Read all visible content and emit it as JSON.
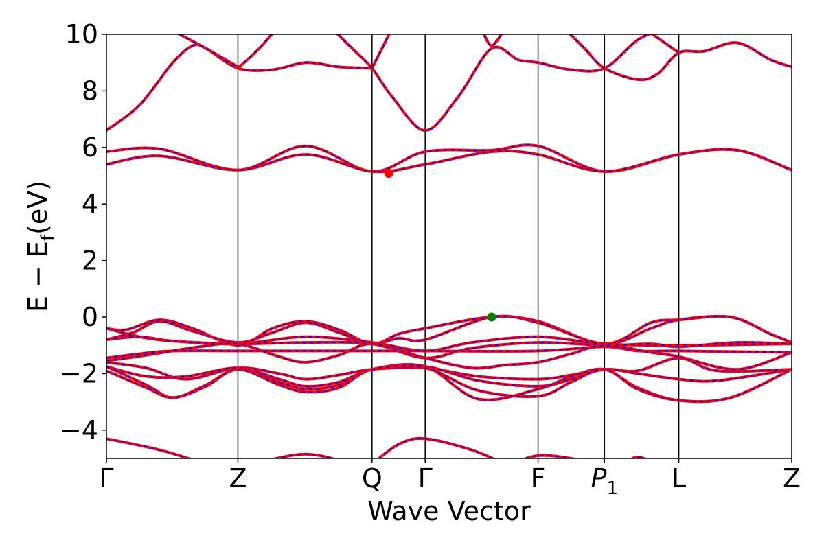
{
  "chart_data": {
    "type": "line",
    "title": "",
    "xlabel": "Wave Vector",
    "ylabel_parts": {
      "main": "E − E",
      "sub": "f",
      "unit": "(eV)"
    },
    "xlim": [
      0,
      10.32
    ],
    "ylim": [
      -5,
      10
    ],
    "yticks": [
      {
        "value": -4,
        "label": "−4"
      },
      {
        "value": -2,
        "label": "−2"
      },
      {
        "value": 0,
        "label": "0"
      },
      {
        "value": 2,
        "label": "2"
      },
      {
        "value": 4,
        "label": "4"
      },
      {
        "value": 6,
        "label": "6"
      },
      {
        "value": 8,
        "label": "8"
      },
      {
        "value": 10,
        "label": "10"
      }
    ],
    "kpoints": [
      {
        "name": "gamma-1",
        "pos": 0.0,
        "label": "Γ",
        "sub": ""
      },
      {
        "name": "z-1",
        "pos": 1.98,
        "label": "Z",
        "sub": ""
      },
      {
        "name": "q",
        "pos": 4.0,
        "label": "Q",
        "sub": ""
      },
      {
        "name": "gamma-2",
        "pos": 4.8,
        "label": "Γ",
        "sub": ""
      },
      {
        "name": "f",
        "pos": 6.5,
        "label": "F",
        "sub": ""
      },
      {
        "name": "p1",
        "pos": 7.5,
        "label": "P",
        "sub": "1"
      },
      {
        "name": "l",
        "pos": 8.62,
        "label": "L",
        "sub": ""
      },
      {
        "name": "z-2",
        "pos": 10.32,
        "label": "Z",
        "sub": ""
      }
    ],
    "grid": false,
    "styles": {
      "band_color": "#ff0000",
      "dash_color": "#0000ff",
      "cbm_color": "#ff0000",
      "vbm_color": "#008000"
    },
    "markers": [
      {
        "name": "conduction-band-minimum-marker",
        "x": 4.25,
        "y": 5.08,
        "color": "#ff0000"
      },
      {
        "name": "valence-band-maximum-marker",
        "x": 5.8,
        "y": 0.0,
        "color": "#008000"
      }
    ],
    "series": [
      {
        "id": "c-upper-1",
        "points": [
          [
            0,
            6.6
          ],
          [
            0.5,
            7.5
          ],
          [
            1.0,
            9.0
          ],
          [
            1.3,
            9.6
          ],
          [
            1.5,
            9.5
          ],
          [
            1.98,
            8.8
          ],
          [
            2.5,
            8.75
          ],
          [
            3.0,
            9.0
          ],
          [
            3.5,
            8.85
          ],
          [
            4.0,
            8.8
          ]
        ]
      },
      {
        "id": "c-upper-2",
        "points": [
          [
            1.98,
            8.8
          ],
          [
            2.3,
            9.5
          ],
          [
            2.6,
            10.3
          ]
        ]
      },
      {
        "id": "c-upper-3",
        "points": [
          [
            1.1,
            10.0
          ],
          [
            1.5,
            9.5
          ],
          [
            1.98,
            8.85
          ]
        ]
      },
      {
        "id": "c-upper-4",
        "points": [
          [
            3.4,
            10.2
          ],
          [
            3.7,
            9.5
          ],
          [
            4.0,
            8.8
          ],
          [
            4.3,
            7.8
          ],
          [
            4.8,
            6.6
          ],
          [
            5.3,
            7.8
          ],
          [
            5.8,
            9.5
          ],
          [
            6.2,
            9.1
          ],
          [
            6.5,
            9.0
          ],
          [
            7.0,
            8.75
          ],
          [
            7.5,
            8.8
          ],
          [
            8.0,
            9.8
          ],
          [
            8.4,
            10.2
          ]
        ]
      },
      {
        "id": "c-upper-5",
        "points": [
          [
            4.0,
            8.8
          ],
          [
            4.3,
            10.2
          ]
        ]
      },
      {
        "id": "c-upper-6",
        "points": [
          [
            5.65,
            10.2
          ],
          [
            5.8,
            9.6
          ],
          [
            6.0,
            10.2
          ]
        ]
      },
      {
        "id": "c-upper-7",
        "points": [
          [
            6.9,
            10.2
          ],
          [
            7.2,
            9.5
          ],
          [
            7.5,
            8.8
          ],
          [
            8.0,
            8.4
          ],
          [
            8.3,
            8.6
          ],
          [
            8.62,
            9.35
          ],
          [
            9.0,
            9.4
          ],
          [
            9.5,
            9.7
          ],
          [
            10.0,
            9.1
          ],
          [
            10.32,
            8.85
          ]
        ]
      },
      {
        "id": "c-upper-8",
        "points": [
          [
            8.1,
            10.2
          ],
          [
            8.62,
            9.35
          ]
        ]
      },
      {
        "id": "c-band-1",
        "points": [
          [
            0,
            5.85
          ],
          [
            0.8,
            5.95
          ],
          [
            1.98,
            5.2
          ],
          [
            3.0,
            6.05
          ],
          [
            4.0,
            5.15
          ],
          [
            4.8,
            5.85
          ],
          [
            5.8,
            5.9
          ],
          [
            6.5,
            6.05
          ],
          [
            7.5,
            5.15
          ],
          [
            8.62,
            5.75
          ],
          [
            9.5,
            5.9
          ],
          [
            10.32,
            5.2
          ]
        ]
      },
      {
        "id": "c-band-2",
        "points": [
          [
            0,
            5.4
          ],
          [
            0.8,
            5.7
          ],
          [
            1.98,
            5.2
          ],
          [
            3.0,
            5.75
          ],
          [
            4.0,
            5.15
          ],
          [
            4.8,
            5.4
          ],
          [
            5.8,
            5.85
          ],
          [
            6.5,
            5.75
          ],
          [
            7.5,
            5.15
          ],
          [
            8.62,
            5.75
          ],
          [
            9.5,
            5.9
          ],
          [
            10.32,
            5.2
          ]
        ]
      },
      {
        "id": "v-1",
        "points": [
          [
            0,
            -0.4
          ],
          [
            0.3,
            -0.45
          ],
          [
            0.8,
            -0.1
          ],
          [
            1.3,
            -0.4
          ],
          [
            1.98,
            -1.0
          ],
          [
            2.5,
            -0.4
          ],
          [
            3.0,
            -0.15
          ],
          [
            3.5,
            -0.45
          ],
          [
            4.0,
            -0.95
          ],
          [
            4.4,
            -0.6
          ],
          [
            4.8,
            -0.4
          ],
          [
            5.8,
            0.0
          ],
          [
            6.5,
            -0.15
          ],
          [
            7.5,
            -0.95
          ],
          [
            8.2,
            -0.2
          ],
          [
            8.62,
            -0.1
          ],
          [
            9.4,
            0.0
          ],
          [
            10.0,
            -0.6
          ],
          [
            10.32,
            -0.9
          ]
        ]
      },
      {
        "id": "v-2",
        "points": [
          [
            0,
            -0.8
          ],
          [
            0.4,
            -0.55
          ],
          [
            0.8,
            -0.15
          ],
          [
            1.3,
            -0.5
          ],
          [
            1.98,
            -0.9
          ],
          [
            2.5,
            -0.55
          ],
          [
            3.0,
            -0.2
          ],
          [
            3.5,
            -0.55
          ],
          [
            4.0,
            -0.95
          ],
          [
            4.4,
            -0.75
          ],
          [
            4.8,
            -0.8
          ],
          [
            5.8,
            0.0
          ],
          [
            6.5,
            -0.2
          ],
          [
            7.5,
            -0.95
          ],
          [
            8.2,
            -0.4
          ],
          [
            8.62,
            -0.1
          ],
          [
            9.4,
            0.0
          ],
          [
            10.0,
            -0.6
          ],
          [
            10.32,
            -0.9
          ]
        ]
      },
      {
        "id": "v-3",
        "points": [
          [
            0,
            -0.4
          ],
          [
            0.5,
            -0.7
          ],
          [
            1.0,
            -0.85
          ],
          [
            1.98,
            -0.95
          ],
          [
            3.0,
            -0.7
          ],
          [
            4.0,
            -0.9
          ],
          [
            4.8,
            -1.2
          ],
          [
            5.5,
            -0.9
          ],
          [
            6.5,
            -0.7
          ],
          [
            7.5,
            -0.95
          ],
          [
            8.62,
            -1.0
          ],
          [
            10.32,
            -0.95
          ]
        ]
      },
      {
        "id": "v-4",
        "points": [
          [
            0,
            -0.8
          ],
          [
            0.5,
            -0.7
          ],
          [
            1.0,
            -0.85
          ],
          [
            1.98,
            -0.95
          ],
          [
            3.0,
            -0.9
          ],
          [
            4.0,
            -0.95
          ],
          [
            4.8,
            -1.45
          ],
          [
            5.5,
            -1.1
          ],
          [
            6.5,
            -0.9
          ],
          [
            7.5,
            -1.0
          ],
          [
            8.2,
            -0.95
          ],
          [
            8.62,
            -1.05
          ],
          [
            9.5,
            -0.9
          ],
          [
            10.32,
            -0.95
          ]
        ]
      },
      {
        "id": "v-5",
        "points": [
          [
            0,
            -1.45
          ],
          [
            0.5,
            -1.3
          ],
          [
            1.0,
            -1.2
          ],
          [
            1.98,
            -1.2
          ],
          [
            3.0,
            -1.2
          ],
          [
            4.0,
            -1.2
          ],
          [
            4.8,
            -1.2
          ],
          [
            6.5,
            -1.2
          ],
          [
            7.5,
            -1.05
          ],
          [
            8.0,
            -1.2
          ],
          [
            8.62,
            -1.2
          ],
          [
            10.32,
            -1.25
          ]
        ]
      },
      {
        "id": "v-6",
        "points": [
          [
            0,
            -1.55
          ],
          [
            0.6,
            -1.35
          ],
          [
            1.4,
            -1.05
          ],
          [
            1.98,
            -0.95
          ],
          [
            2.6,
            -1.4
          ],
          [
            3.0,
            -1.6
          ],
          [
            3.5,
            -1.35
          ],
          [
            4.0,
            -0.95
          ],
          [
            4.8,
            -1.45
          ],
          [
            5.5,
            -1.8
          ],
          [
            6.0,
            -1.7
          ],
          [
            6.5,
            -1.6
          ],
          [
            7.0,
            -1.3
          ],
          [
            7.5,
            -1.0
          ],
          [
            8.2,
            -1.25
          ],
          [
            8.62,
            -1.4
          ],
          [
            9.5,
            -1.85
          ],
          [
            10.32,
            -1.25
          ]
        ]
      },
      {
        "id": "v-7",
        "points": [
          [
            0,
            -1.6
          ],
          [
            0.6,
            -1.8
          ],
          [
            1.2,
            -2.2
          ],
          [
            1.98,
            -1.8
          ],
          [
            2.6,
            -2.0
          ],
          [
            3.0,
            -2.2
          ],
          [
            3.5,
            -2.05
          ],
          [
            4.0,
            -1.85
          ],
          [
            4.8,
            -1.8
          ],
          [
            5.6,
            -2.1
          ],
          [
            6.5,
            -2.2
          ],
          [
            7.0,
            -2.05
          ],
          [
            7.5,
            -1.85
          ],
          [
            8.0,
            -1.9
          ],
          [
            8.62,
            -1.45
          ],
          [
            9.2,
            -1.9
          ],
          [
            10.32,
            -1.85
          ]
        ]
      },
      {
        "id": "v-8",
        "points": [
          [
            0,
            -1.75
          ],
          [
            0.6,
            -2.1
          ],
          [
            1.2,
            -2.1
          ],
          [
            1.98,
            -1.8
          ],
          [
            2.6,
            -2.2
          ],
          [
            3.0,
            -2.45
          ],
          [
            3.5,
            -2.3
          ],
          [
            4.0,
            -1.85
          ],
          [
            4.8,
            -1.75
          ],
          [
            5.6,
            -2.25
          ],
          [
            6.5,
            -2.45
          ],
          [
            7.0,
            -2.2
          ],
          [
            7.5,
            -1.85
          ],
          [
            8.0,
            -2.0
          ],
          [
            8.62,
            -2.2
          ],
          [
            9.2,
            -2.25
          ],
          [
            10.32,
            -1.85
          ]
        ]
      },
      {
        "id": "v-9",
        "points": [
          [
            0,
            -1.75
          ],
          [
            0.6,
            -2.4
          ],
          [
            1.0,
            -2.85
          ],
          [
            1.5,
            -2.4
          ],
          [
            1.98,
            -1.85
          ],
          [
            2.6,
            -2.3
          ],
          [
            3.0,
            -2.55
          ],
          [
            3.5,
            -2.4
          ],
          [
            4.0,
            -1.85
          ],
          [
            4.8,
            -1.75
          ],
          [
            5.6,
            -2.9
          ],
          [
            6.5,
            -2.55
          ],
          [
            7.0,
            -2.1
          ],
          [
            7.5,
            -1.85
          ],
          [
            8.0,
            -2.5
          ],
          [
            8.62,
            -2.95
          ],
          [
            9.4,
            -2.85
          ],
          [
            10.32,
            -1.85
          ]
        ]
      },
      {
        "id": "v-10",
        "points": [
          [
            0,
            -1.9
          ],
          [
            0.6,
            -2.5
          ],
          [
            1.0,
            -2.85
          ],
          [
            1.5,
            -2.45
          ],
          [
            1.98,
            -1.85
          ],
          [
            2.6,
            -2.4
          ],
          [
            3.0,
            -2.65
          ],
          [
            3.5,
            -2.5
          ],
          [
            4.0,
            -1.85
          ],
          [
            4.8,
            -1.8
          ],
          [
            5.6,
            -2.6
          ],
          [
            6.5,
            -2.8
          ],
          [
            7.0,
            -2.3
          ],
          [
            7.5,
            -1.85
          ],
          [
            8.0,
            -2.55
          ],
          [
            8.62,
            -2.95
          ],
          [
            9.4,
            -2.85
          ],
          [
            10.32,
            -1.85
          ]
        ]
      },
      {
        "id": "low-1",
        "points": [
          [
            0,
            -4.3
          ],
          [
            0.8,
            -4.7
          ],
          [
            1.5,
            -5.2
          ]
        ]
      },
      {
        "id": "low-2",
        "points": [
          [
            2.2,
            -5.2
          ],
          [
            3.0,
            -4.85
          ],
          [
            3.7,
            -5.2
          ]
        ]
      },
      {
        "id": "low-3",
        "points": [
          [
            4.0,
            -5.2
          ],
          [
            4.4,
            -4.5
          ],
          [
            4.8,
            -4.3
          ],
          [
            5.5,
            -4.7
          ],
          [
            6.0,
            -5.2
          ]
        ]
      },
      {
        "id": "low-4",
        "points": [
          [
            6.1,
            -5.2
          ],
          [
            6.5,
            -4.9
          ],
          [
            7.0,
            -5.0
          ],
          [
            7.3,
            -5.2
          ]
        ]
      },
      {
        "id": "low-5",
        "points": [
          [
            7.8,
            -5.2
          ],
          [
            8.0,
            -4.95
          ],
          [
            8.3,
            -5.2
          ]
        ]
      }
    ]
  }
}
